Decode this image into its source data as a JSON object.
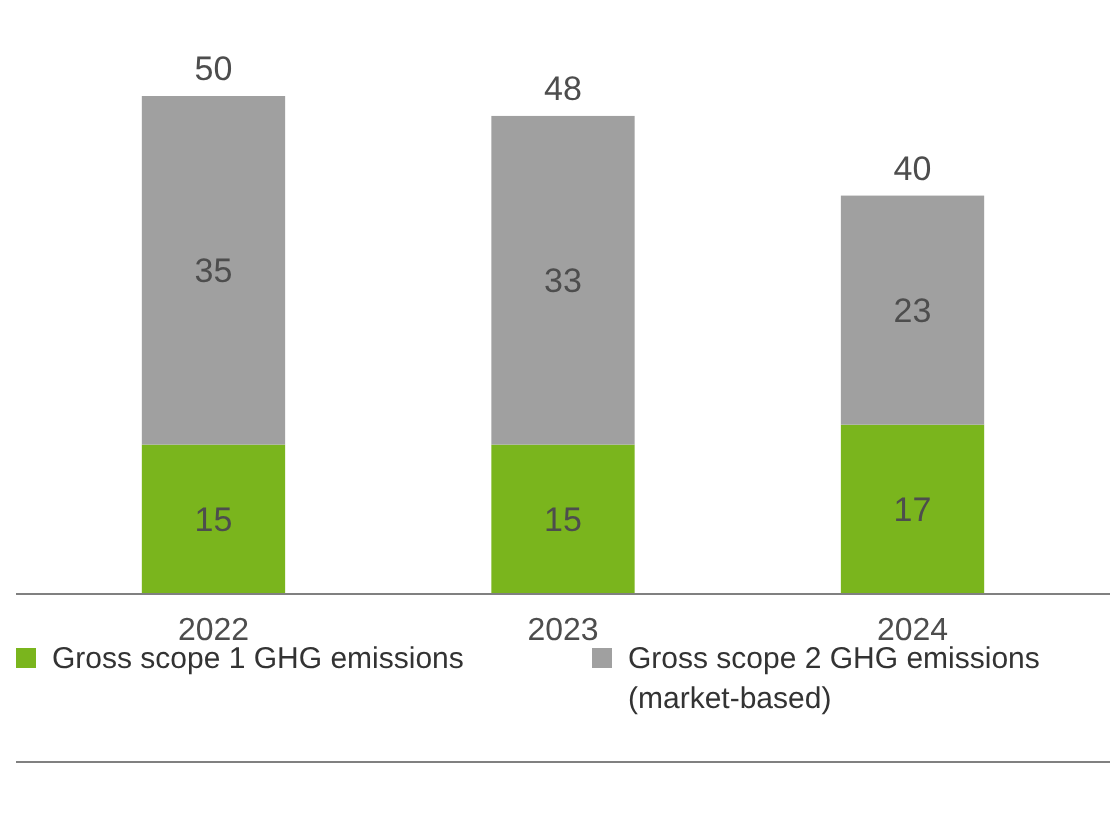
{
  "chart_data": {
    "type": "bar",
    "stacked": true,
    "categories": [
      "2022",
      "2023",
      "2024"
    ],
    "series": [
      {
        "name": "Gross scope 1 GHG emissions",
        "color": "#7ab51d",
        "values": [
          15,
          15,
          17
        ]
      },
      {
        "name": "Gross scope 2 GHG emissions (market-based)",
        "color": "#a0a0a0",
        "values": [
          35,
          33,
          23
        ]
      }
    ],
    "data_labels": true,
    "totals": [
      "50",
      "48",
      "40"
    ],
    "legend": "bottom"
  }
}
